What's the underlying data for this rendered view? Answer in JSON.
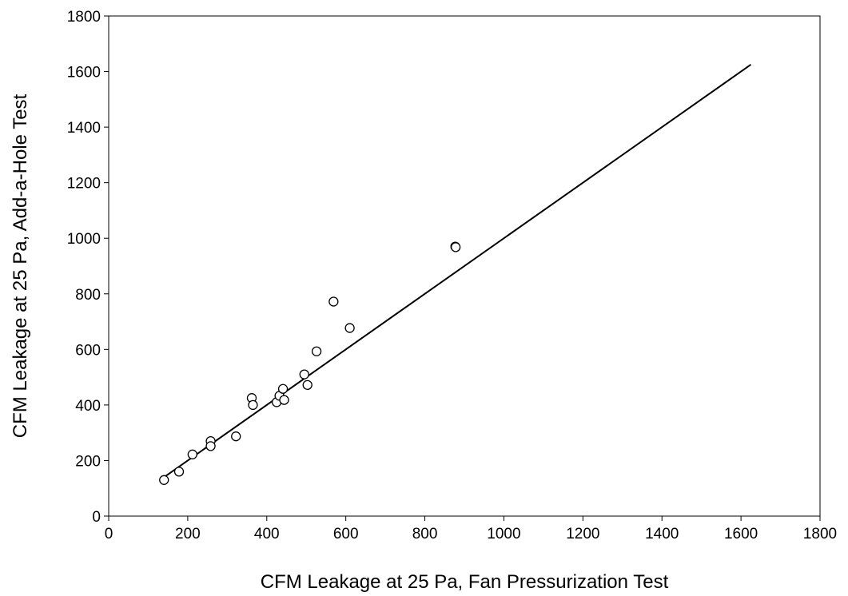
{
  "chart_data": {
    "type": "scatter",
    "title": "",
    "xlabel": "CFM Leakage at 25 Pa, Fan Pressurization Test",
    "ylabel": "CFM Leakage at 25 Pa, Add-a-Hole Test",
    "xlim": [
      0,
      1800
    ],
    "ylim": [
      0,
      1800
    ],
    "x_ticks": [
      "0",
      "200",
      "400",
      "600",
      "800",
      "1000",
      "1200",
      "1400",
      "1600",
      "1800"
    ],
    "y_ticks": [
      "0",
      "200",
      "400",
      "600",
      "800",
      "1000",
      "1200",
      "1400",
      "1600",
      "1800"
    ],
    "grid": false,
    "legend": false,
    "marker": "open-circle",
    "points": [
      {
        "x": 140,
        "y": 130
      },
      {
        "x": 178,
        "y": 160
      },
      {
        "x": 212,
        "y": 222
      },
      {
        "x": 258,
        "y": 270
      },
      {
        "x": 258,
        "y": 252
      },
      {
        "x": 322,
        "y": 287
      },
      {
        "x": 362,
        "y": 425
      },
      {
        "x": 365,
        "y": 400
      },
      {
        "x": 425,
        "y": 410
      },
      {
        "x": 432,
        "y": 433
      },
      {
        "x": 441,
        "y": 458
      },
      {
        "x": 444,
        "y": 418
      },
      {
        "x": 495,
        "y": 510
      },
      {
        "x": 503,
        "y": 472
      },
      {
        "x": 526,
        "y": 593
      },
      {
        "x": 569,
        "y": 772
      },
      {
        "x": 610,
        "y": 677
      },
      {
        "x": 877,
        "y": 970
      },
      {
        "x": 878,
        "y": 968
      }
    ],
    "reference_line": {
      "x": [
        140,
        1625
      ],
      "y": [
        140,
        1625
      ]
    },
    "colors": {
      "marker_stroke": "#000000",
      "marker_fill": "#ffffff",
      "line": "#000000",
      "axis": "#000000"
    }
  }
}
